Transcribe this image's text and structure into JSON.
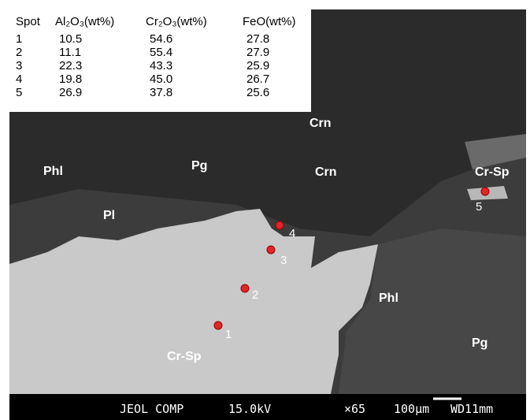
{
  "table": {
    "header": [
      "Spot",
      "Al₂O₃(wt%)",
      "Cr₂O₃(wt%)",
      "FeO(wt%)"
    ],
    "rows": [
      [
        "1",
        "10.5",
        "54.6",
        "27.8"
      ],
      [
        "2",
        "11.1",
        "55.4",
        "27.9"
      ],
      [
        "3",
        "22.3",
        "43.3",
        "25.9"
      ],
      [
        "4",
        "19.8",
        "45.0",
        "26.7"
      ],
      [
        "5",
        "26.9",
        "37.8",
        "25.6"
      ]
    ]
  },
  "minerals": [
    "Crn",
    "Crn",
    "Phl",
    "Pg",
    "Pl",
    "Cr-Sp",
    "Phl",
    "Pg",
    "Cr-Sp"
  ],
  "spots": [
    "1",
    "2",
    "3",
    "4",
    "5"
  ],
  "footer": [
    "JEOL COMP",
    "15.0kV",
    "×65",
    "100μm",
    "WD11mm"
  ]
}
